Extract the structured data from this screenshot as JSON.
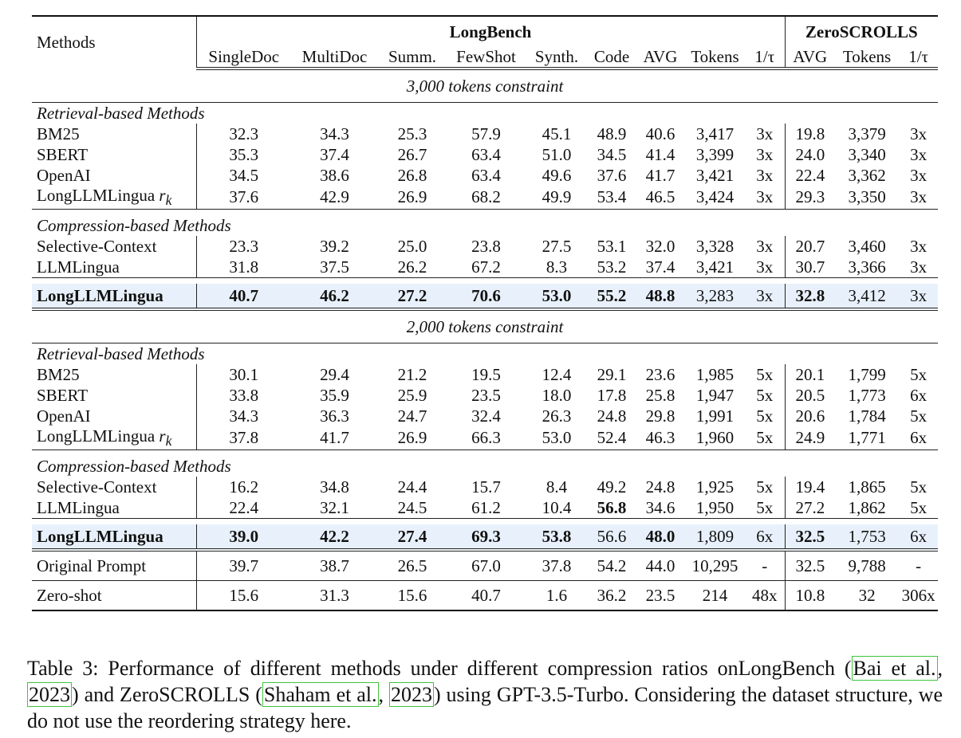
{
  "headers": {
    "methods": "Methods",
    "longbench": "LongBench",
    "zeroscrolls": "ZeroSCROLLS",
    "longbench_cols": [
      "SingleDoc",
      "MultiDoc",
      "Summ.",
      "FewShot",
      "Synth.",
      "Code",
      "AVG",
      "Tokens",
      "1/τ"
    ],
    "zeroscrolls_cols": [
      "AVG",
      "Tokens",
      "1/τ"
    ]
  },
  "sections": [
    {
      "constraint": "3,000 tokens constraint",
      "retrieval_label": "Retrieval-based Methods",
      "retrieval_rows": [
        {
          "method": "BM25",
          "values": [
            "32.3",
            "34.3",
            "25.3",
            "57.9",
            "45.1",
            "48.9",
            "40.6",
            "3,417",
            "3x",
            "19.8",
            "3,379",
            "3x"
          ]
        },
        {
          "method": "SBERT",
          "values": [
            "35.3",
            "37.4",
            "26.7",
            "63.4",
            "51.0",
            "34.5",
            "41.4",
            "3,399",
            "3x",
            "24.0",
            "3,340",
            "3x"
          ]
        },
        {
          "method": "OpenAI",
          "values": [
            "34.5",
            "38.6",
            "26.8",
            "63.4",
            "49.6",
            "37.6",
            "41.7",
            "3,421",
            "3x",
            "22.4",
            "3,362",
            "3x"
          ]
        },
        {
          "method": "LongLLMLingua",
          "method_sub": "r",
          "method_subscript": "k",
          "values": [
            "37.6",
            "42.9",
            "26.9",
            "68.2",
            "49.9",
            "53.4",
            "46.5",
            "3,424",
            "3x",
            "29.3",
            "3,350",
            "3x"
          ]
        }
      ],
      "compression_label": "Compression-based Methods",
      "compression_rows": [
        {
          "method": "Selective-Context",
          "values": [
            "23.3",
            "39.2",
            "25.0",
            "23.8",
            "27.5",
            "53.1",
            "32.0",
            "3,328",
            "3x",
            "20.7",
            "3,460",
            "3x"
          ]
        },
        {
          "method": "LLMLingua",
          "values": [
            "31.8",
            "37.5",
            "26.2",
            "67.2",
            "8.3",
            "53.2",
            "37.4",
            "3,421",
            "3x",
            "30.7",
            "3,366",
            "3x"
          ]
        }
      ],
      "best_row": {
        "method": "LongLLMLingua",
        "values": [
          "40.7",
          "46.2",
          "27.2",
          "70.6",
          "53.0",
          "55.2",
          "48.8",
          "3,283",
          "3x",
          "32.8",
          "3,412",
          "3x"
        ]
      }
    },
    {
      "constraint": "2,000 tokens constraint",
      "retrieval_label": "Retrieval-based Methods",
      "retrieval_rows": [
        {
          "method": "BM25",
          "values": [
            "30.1",
            "29.4",
            "21.2",
            "19.5",
            "12.4",
            "29.1",
            "23.6",
            "1,985",
            "5x",
            "20.1",
            "1,799",
            "5x"
          ]
        },
        {
          "method": "SBERT",
          "values": [
            "33.8",
            "35.9",
            "25.9",
            "23.5",
            "18.0",
            "17.8",
            "25.8",
            "1,947",
            "5x",
            "20.5",
            "1,773",
            "6x"
          ]
        },
        {
          "method": "OpenAI",
          "values": [
            "34.3",
            "36.3",
            "24.7",
            "32.4",
            "26.3",
            "24.8",
            "29.8",
            "1,991",
            "5x",
            "20.6",
            "1,784",
            "5x"
          ]
        },
        {
          "method": "LongLLMLingua",
          "method_sub": "r",
          "method_subscript": "k",
          "values": [
            "37.8",
            "41.7",
            "26.9",
            "66.3",
            "53.0",
            "52.4",
            "46.3",
            "1,960",
            "5x",
            "24.9",
            "1,771",
            "6x"
          ]
        }
      ],
      "compression_label": "Compression-based Methods",
      "compression_rows": [
        {
          "method": "Selective-Context",
          "values": [
            "16.2",
            "34.8",
            "24.4",
            "15.7",
            "8.4",
            "49.2",
            "24.8",
            "1,925",
            "5x",
            "19.4",
            "1,865",
            "5x"
          ]
        },
        {
          "method": "LLMLingua",
          "values": [
            "22.4",
            "32.1",
            "24.5",
            "61.2",
            "10.4",
            "56.8",
            "34.6",
            "1,950",
            "5x",
            "27.2",
            "1,862",
            "5x"
          ]
        }
      ],
      "best_row": {
        "method": "LongLLMLingua",
        "values": [
          "39.0",
          "42.2",
          "27.4",
          "69.3",
          "53.8",
          "56.6",
          "48.0",
          "1,809",
          "6x",
          "32.5",
          "1,753",
          "6x"
        ]
      }
    }
  ],
  "footer_rows": [
    {
      "method": "Original Prompt",
      "values": [
        "39.7",
        "38.7",
        "26.5",
        "67.0",
        "37.8",
        "54.2",
        "44.0",
        "10,295",
        "-",
        "32.5",
        "9,788",
        "-"
      ]
    },
    {
      "method": "Zero-shot",
      "values": [
        "15.6",
        "31.3",
        "15.6",
        "40.7",
        "1.6",
        "36.2",
        "23.5",
        "214",
        "48x",
        "10.8",
        "32",
        "306x"
      ]
    }
  ],
  "caption": {
    "p1": "Table 3:  Performance of different methods under different compression ratios onLongBench (",
    "c1a": "Bai et al.",
    "p2": ", ",
    "c1b": "2023",
    "p3": ") and ZeroSCROLLS (",
    "c2a": "Shaham et al.",
    "p4": ", ",
    "c2b": "2023",
    "p5": ") using GPT-3.5-Turbo.  Considering the dataset structure, we do not use the reordering strategy here."
  },
  "highlight_color": "#e8f1fb",
  "citation_box_color": "#3ec53e"
}
